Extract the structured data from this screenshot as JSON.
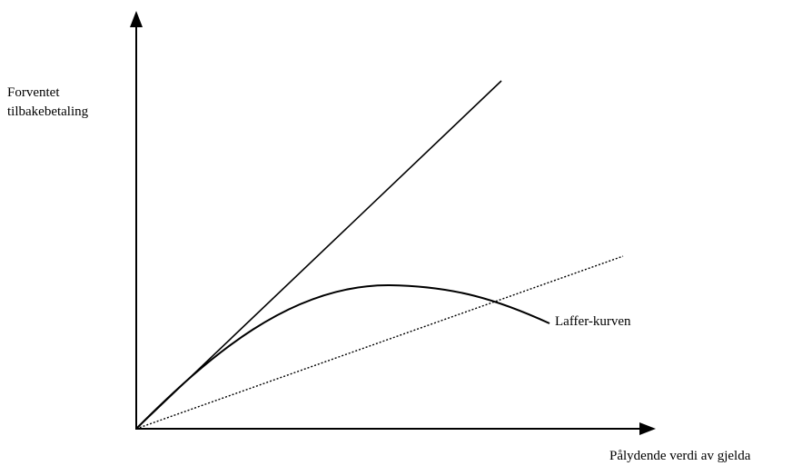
{
  "axes": {
    "y_label_lines": [
      "Forventet",
      "tilbakebetaling"
    ],
    "x_label": "Pålydende verdi av gjelda"
  },
  "curves": {
    "laffer_label": "Laffer-kurven"
  },
  "colors": {
    "ink": "#000000",
    "background": "#ffffff"
  }
}
